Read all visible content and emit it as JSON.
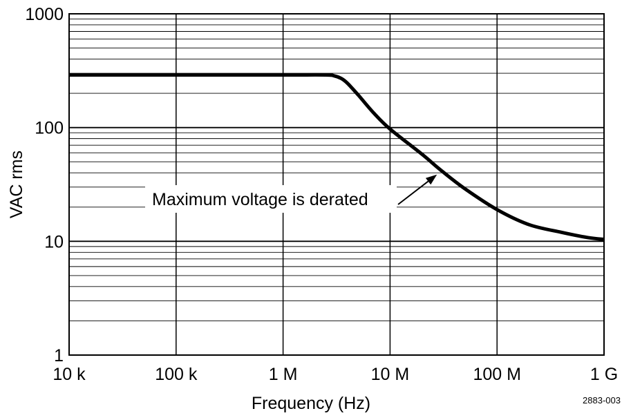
{
  "chart_data": {
    "type": "line",
    "x_scale": "log",
    "y_scale": "log",
    "xlabel": "Frequency (Hz)",
    "ylabel": "VAC rms",
    "xlim": [
      10000,
      1000000000
    ],
    "ylim": [
      1,
      1000
    ],
    "grid": true,
    "x_ticks": [
      {
        "value": 10000,
        "label": "10 k"
      },
      {
        "value": 100000,
        "label": "100 k"
      },
      {
        "value": 1000000,
        "label": "1 M"
      },
      {
        "value": 10000000,
        "label": "10 M"
      },
      {
        "value": 100000000,
        "label": "100 M"
      },
      {
        "value": 1000000000,
        "label": "1 G"
      }
    ],
    "y_ticks": [
      {
        "value": 1,
        "label": "1"
      },
      {
        "value": 10,
        "label": "10"
      },
      {
        "value": 100,
        "label": "100"
      },
      {
        "value": 1000,
        "label": "1000"
      }
    ],
    "series": [
      {
        "x": [
          10000,
          100000,
          1000000,
          2500000,
          3000000,
          3500000,
          4000000,
          5000000,
          7000000,
          10000000,
          20000000,
          30000000,
          50000000,
          100000000,
          200000000,
          400000000,
          700000000,
          1000000000
        ],
        "y": [
          290,
          290,
          290,
          290,
          285,
          270,
          245,
          195,
          135,
          97,
          58,
          42,
          29,
          19,
          14,
          12,
          10.8,
          10.4
        ]
      }
    ],
    "annotations": [
      {
        "text": "Maximum voltage is derated",
        "points_to": {
          "x": 30000000,
          "y": 42
        }
      }
    ],
    "figure_id": "2883-003",
    "line_color": "#000000"
  }
}
